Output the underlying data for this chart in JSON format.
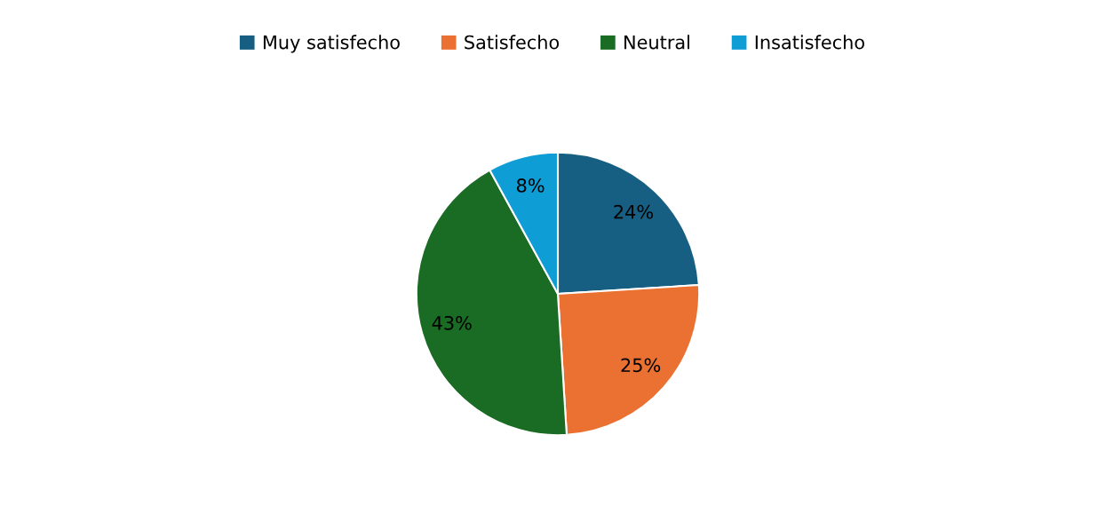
{
  "chart_data": {
    "type": "pie",
    "categories": [
      "Muy satisfecho",
      "Satisfecho",
      "Neutral",
      "Insatisfecho"
    ],
    "values": [
      24,
      25,
      43,
      8
    ],
    "colors": [
      "#175f82",
      "#eb7132",
      "#1a6b23",
      "#0f9dd6"
    ],
    "value_labels": [
      "24%",
      "25%",
      "43%",
      "8%"
    ],
    "legend": "top"
  }
}
